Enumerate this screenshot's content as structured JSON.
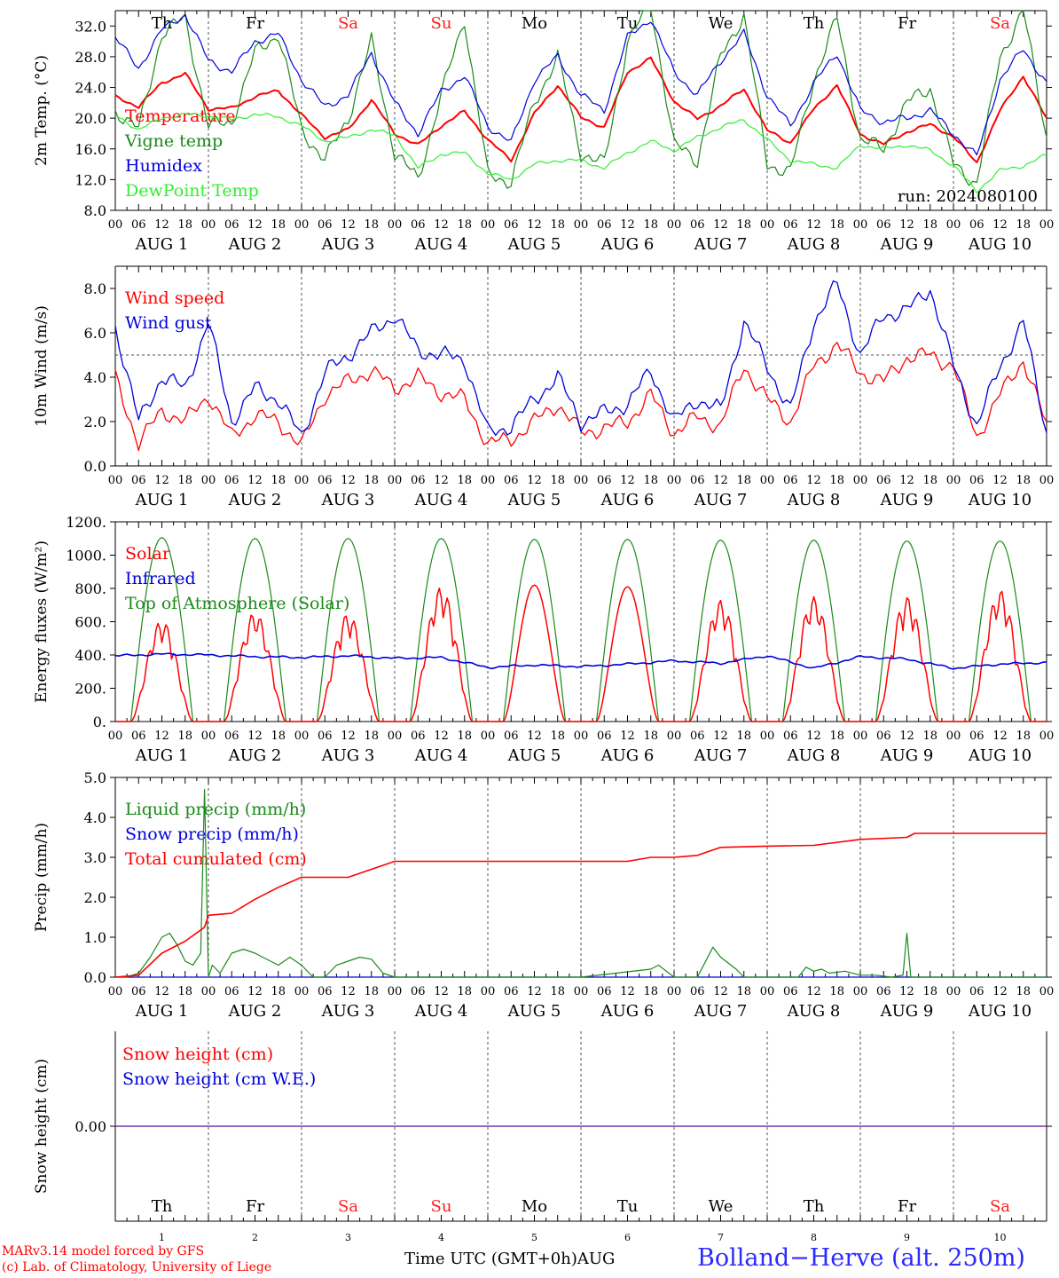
{
  "colors": {
    "red": "#ff0000",
    "blue": "#0000dd",
    "green": "#1a8a1a",
    "lightgreen": "#33ee33",
    "purple": "#7733aa",
    "weekend": "#ff2020",
    "weekday": "#000000"
  },
  "hour_ticks": [
    "00",
    "06",
    "12",
    "18"
  ],
  "last_tick": "00",
  "days": [
    {
      "date": "AUG  1",
      "weekday": "Th",
      "weekend": false,
      "daynum": "1"
    },
    {
      "date": "AUG  2",
      "weekday": "Fr",
      "weekend": false,
      "daynum": "2"
    },
    {
      "date": "AUG  3",
      "weekday": "Sa",
      "weekend": true,
      "daynum": "3"
    },
    {
      "date": "AUG  4",
      "weekday": "Su",
      "weekend": true,
      "daynum": "4"
    },
    {
      "date": "AUG  5",
      "weekday": "Mo",
      "weekend": false,
      "daynum": "5"
    },
    {
      "date": "AUG  6",
      "weekday": "Tu",
      "weekend": false,
      "daynum": "6"
    },
    {
      "date": "AUG  7",
      "weekday": "We",
      "weekend": false,
      "daynum": "7"
    },
    {
      "date": "AUG  8",
      "weekday": "Th",
      "weekend": false,
      "daynum": "8"
    },
    {
      "date": "AUG  9",
      "weekday": "Fr",
      "weekend": false,
      "daynum": "9"
    },
    {
      "date": "AUG 10",
      "weekday": "Sa",
      "weekend": true,
      "daynum": "10"
    }
  ],
  "chart_data": [
    {
      "type": "line",
      "ylabel": "2m Temp. (°C)",
      "ylim": [
        8,
        34
      ],
      "yticks": [
        "8.0",
        "12.0",
        "16.0",
        "20.0",
        "24.0",
        "28.0",
        "32.0"
      ],
      "ytick_values": [
        8,
        12,
        16,
        20,
        24,
        28,
        32
      ],
      "annotation": "run: 2024080100",
      "x_hours": [
        0,
        6,
        12,
        18,
        24,
        30,
        36,
        42,
        48,
        54,
        60,
        66,
        72,
        78,
        84,
        90,
        96,
        102,
        108,
        114,
        120,
        126,
        132,
        138,
        144,
        150,
        156,
        162,
        168,
        174,
        180,
        186,
        192,
        198,
        204,
        210,
        216,
        222,
        228,
        234,
        240
      ],
      "series": [
        {
          "name": "Temperature",
          "color": "red",
          "values": [
            22.8,
            21.5,
            24.6,
            25.8,
            21.2,
            21.3,
            22.8,
            23.6,
            20.4,
            17.5,
            18.5,
            22.4,
            18.0,
            16.5,
            19.0,
            20.9,
            17.2,
            14.5,
            20.6,
            24.3,
            20.1,
            18.8,
            26.0,
            27.8,
            22.2,
            19.9,
            21.6,
            23.8,
            18.4,
            16.8,
            21.2,
            24.3,
            17.9,
            16.6,
            18.2,
            19.2,
            17.6,
            14.2,
            21.0,
            25.5,
            19.9
          ]
        },
        {
          "name": "Vigne temp",
          "color": "green",
          "values": [
            21.0,
            18.5,
            31.0,
            33.0,
            19.0,
            19.5,
            28.5,
            31.0,
            18.5,
            14.5,
            20.0,
            30.0,
            15.5,
            12.0,
            23.0,
            33.0,
            12.5,
            11.8,
            22.0,
            28.0,
            15.5,
            14.0,
            30.0,
            35.0,
            16.5,
            14.5,
            28.0,
            33.5,
            14.0,
            13.0,
            25.0,
            33.0,
            17.2,
            16.0,
            22.0,
            24.0,
            14.0,
            11.5,
            28.0,
            34.0,
            17.5
          ]
        },
        {
          "name": "Humidex",
          "color": "blue",
          "values": [
            30.5,
            26.5,
            31.5,
            33.5,
            27.5,
            26.0,
            30.0,
            31.0,
            25.0,
            21.5,
            23.0,
            28.5,
            22.0,
            18.0,
            23.5,
            25.5,
            19.0,
            16.8,
            25.0,
            28.0,
            23.0,
            21.0,
            30.5,
            33.0,
            26.0,
            23.0,
            27.5,
            31.0,
            23.0,
            19.0,
            24.5,
            28.5,
            21.0,
            19.5,
            20.0,
            21.0,
            18.0,
            15.0,
            25.0,
            29.0,
            24.5
          ]
        },
        {
          "name": "DewPoint Temp",
          "color": "lightgreen",
          "values": [
            20.4,
            18.5,
            20.0,
            20.5,
            20.3,
            19.8,
            20.5,
            20.2,
            19.0,
            17.0,
            17.5,
            18.5,
            17.8,
            13.5,
            15.3,
            15.5,
            12.8,
            12.0,
            14.0,
            14.5,
            14.5,
            13.5,
            15.5,
            17.0,
            15.8,
            17.5,
            18.8,
            19.8,
            17.2,
            14.5,
            14.0,
            13.5,
            16.5,
            16.0,
            16.5,
            15.8,
            13.8,
            10.5,
            13.2,
            13.8,
            15.2
          ]
        }
      ]
    },
    {
      "type": "line",
      "ylabel": "10m Wind (m/s)",
      "ylim": [
        0,
        9
      ],
      "yticks": [
        "0.0",
        "2.0",
        "4.0",
        "6.0",
        "8.0"
      ],
      "ytick_values": [
        0,
        2,
        4,
        6,
        8
      ],
      "reference_line": 5.0,
      "x_hours": [
        0,
        6,
        12,
        18,
        24,
        30,
        36,
        42,
        48,
        54,
        60,
        66,
        72,
        78,
        84,
        90,
        96,
        102,
        108,
        114,
        120,
        126,
        132,
        138,
        144,
        150,
        156,
        162,
        168,
        174,
        180,
        186,
        192,
        198,
        204,
        210,
        216,
        222,
        228,
        234,
        240
      ],
      "series": [
        {
          "name": "Wind speed",
          "color": "red",
          "values": [
            4.0,
            1.0,
            2.5,
            2.0,
            3.2,
            1.3,
            2.3,
            2.0,
            0.9,
            3.2,
            3.8,
            4.3,
            3.5,
            4.0,
            3.3,
            3.0,
            1.0,
            1.2,
            2.0,
            2.8,
            1.5,
            1.7,
            2.0,
            3.2,
            1.5,
            2.2,
            1.8,
            4.5,
            3.0,
            2.0,
            4.5,
            5.5,
            4.2,
            3.8,
            4.9,
            5.0,
            4.5,
            1.3,
            3.2,
            4.8,
            1.8
          ]
        },
        {
          "name": "Wind gust",
          "color": "blue",
          "values": [
            6.3,
            2.0,
            4.0,
            3.5,
            6.5,
            2.0,
            3.5,
            3.0,
            1.3,
            4.2,
            5.0,
            6.0,
            6.8,
            5.2,
            5.0,
            4.8,
            1.5,
            1.8,
            3.0,
            4.0,
            2.0,
            2.4,
            2.8,
            4.3,
            2.0,
            3.0,
            2.5,
            6.5,
            4.5,
            2.5,
            6.5,
            8.2,
            5.0,
            6.8,
            7.0,
            8.0,
            4.5,
            1.8,
            4.5,
            6.5,
            1.5
          ]
        }
      ]
    },
    {
      "type": "line",
      "ylabel": "Energy fluxes (W/m²)",
      "ylim": [
        0,
        1200
      ],
      "yticks": [
        "0.",
        "200.",
        "400.",
        "600.",
        "800.",
        "1000.",
        "1200."
      ],
      "ytick_values": [
        0,
        200,
        400,
        600,
        800,
        1000,
        1200
      ],
      "daily_peaks": {
        "Solar": [
          610,
          660,
          650,
          810,
          820,
          810,
          730,
          750,
          750,
          790
        ],
        "Top of Atmosphere (Solar)": [
          1105,
          1100,
          1100,
          1100,
          1095,
          1095,
          1090,
          1090,
          1085,
          1085
        ]
      },
      "solar_window_hours": [
        4,
        20
      ],
      "infrared_hours": [
        0,
        12,
        24,
        36,
        48,
        60,
        72,
        84,
        96,
        108,
        120,
        132,
        144,
        156,
        168,
        180,
        192,
        204,
        216,
        228,
        240
      ],
      "infrared_values": [
        395,
        405,
        400,
        390,
        385,
        395,
        380,
        385,
        325,
        340,
        330,
        345,
        365,
        350,
        395,
        320,
        390,
        375,
        320,
        345,
        355
      ],
      "series": [
        {
          "name": "Solar",
          "color": "red"
        },
        {
          "name": "Infrared",
          "color": "blue"
        },
        {
          "name": "Top of Atmosphere (Solar)",
          "color": "green"
        }
      ]
    },
    {
      "type": "line",
      "ylabel": "Precip (mm/h)",
      "ylim": [
        0,
        5
      ],
      "yticks": [
        "0.0",
        "1.0",
        "2.0",
        "3.0",
        "4.0",
        "5.0"
      ],
      "ytick_values": [
        0,
        1,
        2,
        3,
        4,
        5
      ],
      "series": [
        {
          "name": "Liquid precip (mm/h)",
          "color": "green",
          "x_hours": [
            0,
            3,
            6,
            9,
            12,
            14,
            16,
            18,
            20,
            22,
            23,
            24,
            25,
            27,
            30,
            33,
            36,
            40,
            42,
            45,
            48,
            51,
            54,
            57,
            60,
            63,
            66,
            69,
            72,
            75,
            76,
            90,
            120,
            138,
            140,
            142,
            144,
            150,
            154,
            156,
            160,
            162,
            176,
            178,
            180,
            182,
            184,
            188,
            192,
            196,
            200,
            203,
            204,
            205,
            206,
            210,
            240
          ],
          "values": [
            0.0,
            0.0,
            0.1,
            0.5,
            1.0,
            1.1,
            0.8,
            0.4,
            0.3,
            0.6,
            4.7,
            0.0,
            0.3,
            0.1,
            0.6,
            0.7,
            0.6,
            0.4,
            0.3,
            0.5,
            0.3,
            0.0,
            0.0,
            0.3,
            0.4,
            0.5,
            0.45,
            0.1,
            0.0,
            0.0,
            0.0,
            0.0,
            0.0,
            0.2,
            0.3,
            0.15,
            0.0,
            0.0,
            0.75,
            0.5,
            0.2,
            0.0,
            0.0,
            0.25,
            0.15,
            0.2,
            0.1,
            0.15,
            0.05,
            0.05,
            0.0,
            0.05,
            1.1,
            0.0,
            0.0,
            0.0,
            0.0
          ]
        },
        {
          "name": "Snow precip (mm/h)",
          "color": "blue",
          "x_hours": [
            0,
            240
          ],
          "values": [
            0,
            0
          ]
        },
        {
          "name": "Total cumulated (cm)",
          "color": "red",
          "x_hours": [
            0,
            6,
            12,
            18,
            23,
            24,
            30,
            36,
            42,
            48,
            54,
            60,
            66,
            72,
            78,
            84,
            96,
            120,
            132,
            138,
            144,
            150,
            156,
            168,
            180,
            192,
            204,
            206,
            216,
            240
          ],
          "values": [
            0.0,
            0.05,
            0.6,
            0.9,
            1.25,
            1.55,
            1.6,
            1.95,
            2.25,
            2.5,
            2.5,
            2.5,
            2.7,
            2.9,
            2.9,
            2.9,
            2.9,
            2.9,
            2.9,
            3.0,
            3.0,
            3.05,
            3.25,
            3.28,
            3.3,
            3.45,
            3.5,
            3.6,
            3.6,
            3.6
          ]
        }
      ]
    },
    {
      "type": "line",
      "ylabel": "Snow height (cm)",
      "ylim": [
        -1,
        1
      ],
      "yticks": [
        "0.00"
      ],
      "ytick_values": [
        0
      ],
      "series": [
        {
          "name": "Snow height (cm)",
          "color": "red",
          "x_hours": [
            0,
            240
          ],
          "values": [
            0,
            0
          ]
        },
        {
          "name": "Snow height (cm W.E.)",
          "color": "blue",
          "x_hours": [
            0,
            240
          ],
          "values": [
            0,
            0
          ]
        }
      ]
    }
  ],
  "footer": {
    "model": "MARv3.14 model forced by GFS",
    "lab": "(c) Lab. of Climatology, University of Liege",
    "time_label": "Time UTC (GMT+0h)AUG",
    "station": "Bolland−Herve (alt. 250m)"
  }
}
